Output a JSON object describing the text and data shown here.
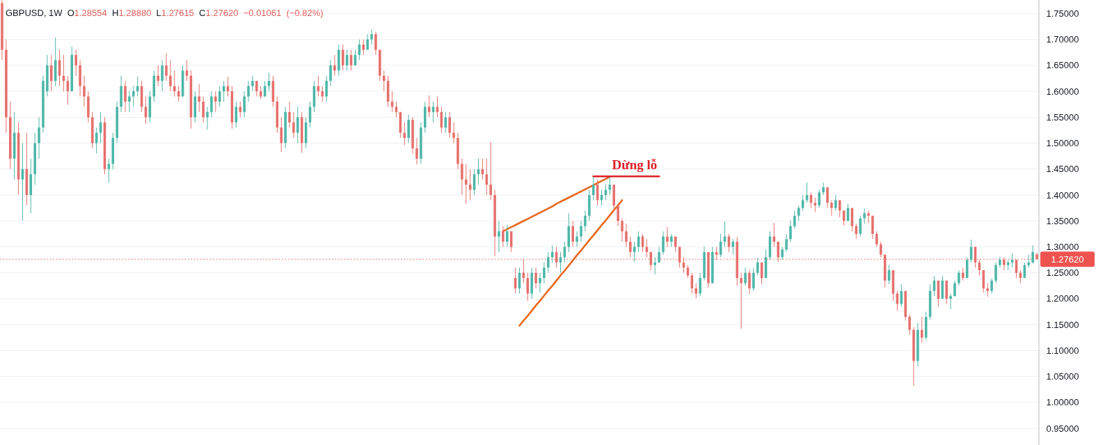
{
  "chart_data": {
    "type": "candlestick",
    "title": "GBPUSD, 1W",
    "subtitle": "O1.28554 H1.28880 L1.27615 C1.27620 −0.01061 (−0.82%)",
    "categories": [
      null,
      null,
      null,
      null,
      null,
      null,
      null,
      null,
      null,
      null,
      null,
      null,
      null,
      null,
      null,
      null,
      null,
      null,
      null,
      null,
      null,
      null,
      null,
      null,
      null,
      null,
      null,
      null,
      null,
      null,
      null,
      null,
      null,
      null,
      null,
      null,
      null,
      null,
      null,
      null,
      null,
      null,
      null,
      null,
      null,
      null,
      null,
      null,
      null,
      null,
      null,
      null,
      null,
      null,
      null,
      null,
      null,
      null,
      null,
      null,
      null,
      null,
      null,
      null,
      null,
      null,
      null,
      null,
      null,
      null,
      null,
      null,
      null,
      null,
      null,
      null,
      null,
      null,
      null,
      null,
      null,
      null,
      null,
      null,
      null,
      null,
      null,
      null,
      null,
      null,
      null,
      null,
      null,
      null,
      null,
      null,
      null,
      null,
      null,
      null,
      null,
      null,
      null,
      null,
      null,
      null,
      null,
      null,
      null,
      null,
      null,
      null,
      null,
      null,
      null,
      null,
      null,
      null,
      null,
      null,
      null,
      null,
      null,
      null,
      null,
      null,
      null,
      null,
      null,
      null,
      null,
      null,
      null,
      null,
      null,
      null,
      null,
      null,
      null,
      null,
      null,
      null,
      null,
      null,
      null,
      null,
      null,
      null,
      null,
      null,
      null,
      null,
      null,
      null,
      null,
      null,
      null,
      null,
      null,
      null,
      null,
      null,
      null,
      null,
      null,
      null,
      null,
      null,
      null,
      null,
      null,
      null,
      null,
      null,
      null,
      null,
      null,
      null,
      null,
      null,
      null,
      null,
      null,
      null,
      null,
      null,
      null,
      null,
      null,
      null,
      null,
      null,
      null,
      null,
      null,
      null,
      null,
      null,
      null,
      null,
      null,
      null,
      null,
      null,
      null,
      null,
      null,
      null,
      null,
      null,
      null,
      null,
      null,
      null,
      null,
      null,
      null,
      null,
      null,
      null,
      null,
      null,
      null,
      null,
      null,
      null,
      null,
      null,
      null,
      null,
      null,
      null,
      null,
      null,
      null,
      null,
      null,
      null,
      null,
      null,
      null,
      null,
      null,
      null,
      null,
      null,
      null,
      null,
      null,
      null,
      null,
      null,
      null
    ],
    "ohlc": [
      [
        1.77,
        1.775,
        1.66,
        1.68
      ],
      [
        1.68,
        1.7,
        1.52,
        1.55
      ],
      [
        1.55,
        1.58,
        1.45,
        1.47
      ],
      [
        1.47,
        1.56,
        1.43,
        1.52
      ],
      [
        1.52,
        1.54,
        1.4,
        1.43
      ],
      [
        1.43,
        1.5,
        1.351,
        1.45
      ],
      [
        1.45,
        1.52,
        1.38,
        1.4
      ],
      [
        1.4,
        1.47,
        1.365,
        1.44
      ],
      [
        1.44,
        1.52,
        1.42,
        1.5
      ],
      [
        1.5,
        1.55,
        1.47,
        1.53
      ],
      [
        1.53,
        1.63,
        1.52,
        1.62
      ],
      [
        1.6,
        1.67,
        1.59,
        1.65
      ],
      [
        1.65,
        1.67,
        1.6,
        1.62
      ],
      [
        1.62,
        1.704,
        1.61,
        1.66
      ],
      [
        1.66,
        1.68,
        1.61,
        1.63
      ],
      [
        1.63,
        1.67,
        1.6,
        1.62
      ],
      [
        1.62,
        1.63,
        1.574,
        1.6
      ],
      [
        1.6,
        1.686,
        1.6,
        1.67
      ],
      [
        1.67,
        1.68,
        1.63,
        1.65
      ],
      [
        1.65,
        1.66,
        1.59,
        1.61
      ],
      [
        1.61,
        1.63,
        1.57,
        1.59
      ],
      [
        1.59,
        1.6,
        1.54,
        1.55
      ],
      [
        1.55,
        1.56,
        1.49,
        1.5
      ],
      [
        1.5,
        1.53,
        1.48,
        1.52
      ],
      [
        1.52,
        1.56,
        1.5,
        1.54
      ],
      [
        1.54,
        1.55,
        1.44,
        1.45
      ],
      [
        1.45,
        1.47,
        1.424,
        1.46
      ],
      [
        1.46,
        1.52,
        1.45,
        1.51
      ],
      [
        1.51,
        1.58,
        1.5,
        1.57
      ],
      [
        1.57,
        1.63,
        1.56,
        1.61
      ],
      [
        1.61,
        1.62,
        1.56,
        1.58
      ],
      [
        1.58,
        1.6,
        1.56,
        1.59
      ],
      [
        1.59,
        1.61,
        1.57,
        1.6
      ],
      [
        1.6,
        1.628,
        1.59,
        1.61
      ],
      [
        1.61,
        1.62,
        1.56,
        1.57
      ],
      [
        1.57,
        1.59,
        1.537,
        1.55
      ],
      [
        1.55,
        1.6,
        1.54,
        1.59
      ],
      [
        1.59,
        1.64,
        1.58,
        1.63
      ],
      [
        1.63,
        1.65,
        1.61,
        1.62
      ],
      [
        1.62,
        1.66,
        1.6,
        1.65
      ],
      [
        1.65,
        1.673,
        1.62,
        1.63
      ],
      [
        1.63,
        1.66,
        1.6,
        1.61
      ],
      [
        1.61,
        1.64,
        1.59,
        1.6
      ],
      [
        1.6,
        1.61,
        1.58,
        1.59
      ],
      [
        1.59,
        1.65,
        1.59,
        1.64
      ],
      [
        1.64,
        1.66,
        1.62,
        1.63
      ],
      [
        1.63,
        1.64,
        1.528,
        1.55
      ],
      [
        1.55,
        1.6,
        1.54,
        1.59
      ],
      [
        1.59,
        1.614,
        1.56,
        1.58
      ],
      [
        1.58,
        1.59,
        1.54,
        1.55
      ],
      [
        1.55,
        1.57,
        1.526,
        1.56
      ],
      [
        1.56,
        1.6,
        1.55,
        1.59
      ],
      [
        1.59,
        1.6,
        1.56,
        1.58
      ],
      [
        1.58,
        1.61,
        1.57,
        1.6
      ],
      [
        1.6,
        1.62,
        1.58,
        1.61
      ],
      [
        1.61,
        1.628,
        1.59,
        1.6
      ],
      [
        1.6,
        1.61,
        1.528,
        1.54
      ],
      [
        1.54,
        1.58,
        1.53,
        1.57
      ],
      [
        1.57,
        1.58,
        1.55,
        1.56
      ],
      [
        1.56,
        1.6,
        1.55,
        1.59
      ],
      [
        1.59,
        1.62,
        1.58,
        1.61
      ],
      [
        1.61,
        1.63,
        1.6,
        1.62
      ],
      [
        1.62,
        1.62,
        1.59,
        1.6
      ],
      [
        1.6,
        1.61,
        1.585,
        1.59
      ],
      [
        1.59,
        1.62,
        1.59,
        1.61
      ],
      [
        1.61,
        1.636,
        1.6,
        1.62
      ],
      [
        1.62,
        1.63,
        1.57,
        1.58
      ],
      [
        1.58,
        1.59,
        1.52,
        1.53
      ],
      [
        1.53,
        1.55,
        1.483,
        1.5
      ],
      [
        1.5,
        1.57,
        1.49,
        1.56
      ],
      [
        1.56,
        1.58,
        1.53,
        1.54
      ],
      [
        1.54,
        1.56,
        1.51,
        1.52
      ],
      [
        1.52,
        1.57,
        1.5,
        1.55
      ],
      [
        1.55,
        1.56,
        1.481,
        1.5
      ],
      [
        1.5,
        1.55,
        1.49,
        1.54
      ],
      [
        1.54,
        1.58,
        1.53,
        1.57
      ],
      [
        1.57,
        1.62,
        1.56,
        1.61
      ],
      [
        1.61,
        1.63,
        1.59,
        1.6
      ],
      [
        1.6,
        1.61,
        1.58,
        1.59
      ],
      [
        1.59,
        1.63,
        1.58,
        1.62
      ],
      [
        1.62,
        1.66,
        1.61,
        1.65
      ],
      [
        1.65,
        1.67,
        1.63,
        1.64
      ],
      [
        1.64,
        1.69,
        1.63,
        1.68
      ],
      [
        1.68,
        1.69,
        1.64,
        1.65
      ],
      [
        1.65,
        1.68,
        1.64,
        1.67
      ],
      [
        1.67,
        1.68,
        1.64,
        1.65
      ],
      [
        1.65,
        1.68,
        1.65,
        1.67
      ],
      [
        1.67,
        1.7,
        1.66,
        1.69
      ],
      [
        1.69,
        1.7,
        1.67,
        1.68
      ],
      [
        1.68,
        1.71,
        1.68,
        1.7
      ],
      [
        1.7,
        1.719,
        1.69,
        1.71
      ],
      [
        1.71,
        1.715,
        1.67,
        1.68
      ],
      [
        1.68,
        1.68,
        1.62,
        1.63
      ],
      [
        1.63,
        1.64,
        1.6,
        1.62
      ],
      [
        1.62,
        1.63,
        1.57,
        1.58
      ],
      [
        1.58,
        1.6,
        1.56,
        1.57
      ],
      [
        1.57,
        1.58,
        1.55,
        1.56
      ],
      [
        1.56,
        1.56,
        1.51,
        1.52
      ],
      [
        1.52,
        1.54,
        1.496,
        1.51
      ],
      [
        1.51,
        1.555,
        1.5,
        1.545
      ],
      [
        1.545,
        1.55,
        1.48,
        1.49
      ],
      [
        1.49,
        1.51,
        1.459,
        1.47
      ],
      [
        1.47,
        1.54,
        1.46,
        1.53
      ],
      [
        1.53,
        1.58,
        1.52,
        1.57
      ],
      [
        1.57,
        1.592,
        1.55,
        1.56
      ],
      [
        1.56,
        1.58,
        1.54,
        1.57
      ],
      [
        1.57,
        1.59,
        1.55,
        1.56
      ],
      [
        1.56,
        1.57,
        1.52,
        1.53
      ],
      [
        1.53,
        1.56,
        1.52,
        1.55
      ],
      [
        1.55,
        1.56,
        1.51,
        1.52
      ],
      [
        1.52,
        1.54,
        1.5,
        1.51
      ],
      [
        1.51,
        1.52,
        1.45,
        1.46
      ],
      [
        1.46,
        1.47,
        1.4,
        1.43
      ],
      [
        1.43,
        1.46,
        1.383,
        1.42
      ],
      [
        1.42,
        1.45,
        1.39,
        1.41
      ],
      [
        1.41,
        1.45,
        1.4,
        1.44
      ],
      [
        1.44,
        1.47,
        1.42,
        1.45
      ],
      [
        1.45,
        1.47,
        1.43,
        1.44
      ],
      [
        1.44,
        1.47,
        1.4,
        1.42
      ],
      [
        1.42,
        1.502,
        1.39,
        1.4
      ],
      [
        1.4,
        1.41,
        1.282,
        1.32
      ],
      [
        1.32,
        1.35,
        1.29,
        1.33
      ],
      [
        1.33,
        1.34,
        1.3,
        1.31
      ],
      [
        1.31,
        1.343,
        1.3,
        1.33
      ],
      [
        1.33,
        1.33,
        1.29,
        1.3
      ],
      [
        1.24,
        1.26,
        1.21,
        1.22
      ],
      [
        1.22,
        1.26,
        1.21,
        1.25
      ],
      [
        1.25,
        1.276,
        1.23,
        1.24
      ],
      [
        1.24,
        1.25,
        1.196,
        1.21
      ],
      [
        1.21,
        1.26,
        1.2,
        1.25
      ],
      [
        1.25,
        1.26,
        1.22,
        1.23
      ],
      [
        1.23,
        1.25,
        1.212,
        1.24
      ],
      [
        1.24,
        1.27,
        1.23,
        1.26
      ],
      [
        1.26,
        1.29,
        1.25,
        1.28
      ],
      [
        1.28,
        1.303,
        1.27,
        1.29
      ],
      [
        1.29,
        1.3,
        1.26,
        1.27
      ],
      [
        1.27,
        1.29,
        1.25,
        1.28
      ],
      [
        1.28,
        1.31,
        1.27,
        1.3
      ],
      [
        1.3,
        1.365,
        1.29,
        1.34
      ],
      [
        1.34,
        1.35,
        1.3,
        1.31
      ],
      [
        1.31,
        1.33,
        1.3,
        1.32
      ],
      [
        1.32,
        1.35,
        1.31,
        1.34
      ],
      [
        1.34,
        1.37,
        1.33,
        1.36
      ],
      [
        1.36,
        1.41,
        1.35,
        1.4
      ],
      [
        1.4,
        1.435,
        1.39,
        1.42
      ],
      [
        1.42,
        1.43,
        1.38,
        1.39
      ],
      [
        1.39,
        1.41,
        1.38,
        1.4
      ],
      [
        1.4,
        1.42,
        1.39,
        1.41
      ],
      [
        1.41,
        1.435,
        1.4,
        1.42
      ],
      [
        1.42,
        1.42,
        1.37,
        1.38
      ],
      [
        1.38,
        1.38,
        1.34,
        1.35
      ],
      [
        1.35,
        1.355,
        1.31,
        1.33
      ],
      [
        1.33,
        1.345,
        1.3,
        1.31
      ],
      [
        1.31,
        1.32,
        1.28,
        1.29
      ],
      [
        1.29,
        1.31,
        1.271,
        1.3
      ],
      [
        1.3,
        1.33,
        1.29,
        1.32
      ],
      [
        1.32,
        1.325,
        1.29,
        1.3
      ],
      [
        1.3,
        1.315,
        1.28,
        1.29
      ],
      [
        1.29,
        1.29,
        1.255,
        1.265
      ],
      [
        1.265,
        1.28,
        1.247,
        1.27
      ],
      [
        1.27,
        1.3,
        1.27,
        1.29
      ],
      [
        1.29,
        1.33,
        1.285,
        1.32
      ],
      [
        1.32,
        1.338,
        1.3,
        1.31
      ],
      [
        1.31,
        1.325,
        1.3,
        1.32
      ],
      [
        1.32,
        1.32,
        1.29,
        1.3
      ],
      [
        1.3,
        1.3,
        1.26,
        1.27
      ],
      [
        1.27,
        1.28,
        1.25,
        1.26
      ],
      [
        1.26,
        1.265,
        1.24,
        1.245
      ],
      [
        1.245,
        1.25,
        1.21,
        1.22
      ],
      [
        1.22,
        1.23,
        1.201,
        1.21
      ],
      [
        1.21,
        1.25,
        1.205,
        1.24
      ],
      [
        1.24,
        1.3,
        1.235,
        1.29
      ],
      [
        1.29,
        1.29,
        1.222,
        1.23
      ],
      [
        1.23,
        1.3,
        1.23,
        1.29
      ],
      [
        1.29,
        1.3,
        1.275,
        1.285
      ],
      [
        1.285,
        1.325,
        1.28,
        1.31
      ],
      [
        1.31,
        1.349,
        1.3,
        1.32
      ],
      [
        1.32,
        1.325,
        1.29,
        1.3
      ],
      [
        1.3,
        1.315,
        1.285,
        1.31
      ],
      [
        1.31,
        1.319,
        1.225,
        1.24
      ],
      [
        1.24,
        1.25,
        1.142,
        1.23
      ],
      [
        1.23,
        1.26,
        1.225,
        1.25
      ],
      [
        1.25,
        1.255,
        1.209,
        1.22
      ],
      [
        1.22,
        1.26,
        1.215,
        1.25
      ],
      [
        1.25,
        1.279,
        1.245,
        1.27
      ],
      [
        1.27,
        1.27,
        1.228,
        1.24
      ],
      [
        1.24,
        1.295,
        1.24,
        1.28
      ],
      [
        1.28,
        1.33,
        1.275,
        1.32
      ],
      [
        1.32,
        1.346,
        1.3,
        1.31
      ],
      [
        1.31,
        1.31,
        1.271,
        1.28
      ],
      [
        1.28,
        1.3,
        1.275,
        1.295
      ],
      [
        1.295,
        1.325,
        1.29,
        1.315
      ],
      [
        1.315,
        1.351,
        1.31,
        1.34
      ],
      [
        1.34,
        1.37,
        1.335,
        1.36
      ],
      [
        1.36,
        1.38,
        1.35,
        1.375
      ],
      [
        1.375,
        1.4,
        1.37,
        1.39
      ],
      [
        1.39,
        1.424,
        1.385,
        1.4
      ],
      [
        1.4,
        1.405,
        1.375,
        1.385
      ],
      [
        1.385,
        1.395,
        1.367,
        1.38
      ],
      [
        1.38,
        1.41,
        1.375,
        1.405
      ],
      [
        1.405,
        1.424,
        1.4,
        1.415
      ],
      [
        1.415,
        1.415,
        1.375,
        1.385
      ],
      [
        1.385,
        1.39,
        1.36,
        1.375
      ],
      [
        1.375,
        1.4,
        1.37,
        1.39
      ],
      [
        1.39,
        1.39,
        1.357,
        1.37
      ],
      [
        1.37,
        1.37,
        1.341,
        1.35
      ],
      [
        1.35,
        1.383,
        1.35,
        1.375
      ],
      [
        1.375,
        1.375,
        1.33,
        1.34
      ],
      [
        1.34,
        1.345,
        1.316,
        1.325
      ],
      [
        1.325,
        1.36,
        1.32,
        1.355
      ],
      [
        1.355,
        1.374,
        1.345,
        1.365
      ],
      [
        1.365,
        1.37,
        1.345,
        1.36
      ],
      [
        1.36,
        1.36,
        1.315,
        1.325
      ],
      [
        1.325,
        1.33,
        1.3,
        1.305
      ],
      [
        1.305,
        1.31,
        1.28,
        1.285
      ],
      [
        1.285,
        1.285,
        1.222,
        1.235
      ],
      [
        1.235,
        1.265,
        1.228,
        1.255
      ],
      [
        1.255,
        1.255,
        1.196,
        1.21
      ],
      [
        1.21,
        1.215,
        1.177,
        1.19
      ],
      [
        1.19,
        1.228,
        1.185,
        1.215
      ],
      [
        1.215,
        1.215,
        1.158,
        1.165
      ],
      [
        1.165,
        1.17,
        1.13,
        1.14
      ],
      [
        1.14,
        1.145,
        1.032,
        1.08
      ],
      [
        1.08,
        1.153,
        1.07,
        1.14
      ],
      [
        1.14,
        1.165,
        1.115,
        1.125
      ],
      [
        1.125,
        1.175,
        1.12,
        1.165
      ],
      [
        1.165,
        1.228,
        1.16,
        1.215
      ],
      [
        1.215,
        1.244,
        1.205,
        1.235
      ],
      [
        1.235,
        1.235,
        1.185,
        1.2
      ],
      [
        1.2,
        1.244,
        1.2,
        1.235
      ],
      [
        1.235,
        1.235,
        1.19,
        1.2
      ],
      [
        1.2,
        1.21,
        1.18,
        1.205
      ],
      [
        1.205,
        1.235,
        1.205,
        1.23
      ],
      [
        1.23,
        1.255,
        1.225,
        1.25
      ],
      [
        1.25,
        1.26,
        1.235,
        1.24
      ],
      [
        1.24,
        1.28,
        1.24,
        1.275
      ],
      [
        1.275,
        1.314,
        1.27,
        1.3
      ],
      [
        1.3,
        1.3,
        1.26,
        1.27
      ],
      [
        1.27,
        1.275,
        1.245,
        1.255
      ],
      [
        1.255,
        1.255,
        1.212,
        1.22
      ],
      [
        1.22,
        1.23,
        1.204,
        1.215
      ],
      [
        1.215,
        1.24,
        1.21,
        1.235
      ],
      [
        1.235,
        1.27,
        1.23,
        1.265
      ],
      [
        1.265,
        1.281,
        1.26,
        1.275
      ],
      [
        1.275,
        1.28,
        1.255,
        1.265
      ],
      [
        1.265,
        1.275,
        1.255,
        1.27
      ],
      [
        1.27,
        1.287,
        1.26,
        1.275
      ],
      [
        1.275,
        1.275,
        1.24,
        1.25
      ],
      [
        1.25,
        1.255,
        1.23,
        1.24
      ],
      [
        1.24,
        1.27,
        1.24,
        1.265
      ],
      [
        1.265,
        1.285,
        1.26,
        1.27
      ],
      [
        1.27,
        1.303,
        1.268,
        1.29
      ],
      [
        1.28554,
        1.2888,
        1.27615,
        1.2762
      ]
    ],
    "colors": [
      "#e5706c",
      "#e5706c",
      "#e5706c",
      "#4db6a8",
      "#e5706c",
      "#4db6a8",
      "#e5706c",
      "#4db6a8",
      "#4db6a8",
      "#4db6a8",
      "#4db6a8",
      "#4db6a8",
      "#e5706c",
      "#4db6a8",
      "#e5706c",
      "#e5706c",
      "#e5706c",
      "#4db6a8",
      "#e5706c",
      "#e5706c",
      "#e5706c",
      "#e5706c",
      "#e5706c",
      "#4db6a8",
      "#4db6a8",
      "#e5706c",
      "#4db6a8",
      "#4db6a8",
      "#4db6a8",
      "#4db6a8",
      "#e5706c",
      "#4db6a8",
      "#4db6a8",
      "#4db6a8",
      "#e5706c",
      "#e5706c",
      "#4db6a8",
      "#4db6a8",
      "#e5706c",
      "#4db6a8",
      "#e5706c",
      "#e5706c",
      "#e5706c",
      "#e5706c",
      "#4db6a8",
      "#e5706c",
      "#e5706c",
      "#4db6a8",
      "#e5706c",
      "#e5706c",
      "#4db6a8",
      "#4db6a8",
      "#e5706c",
      "#4db6a8",
      "#4db6a8",
      "#e5706c",
      "#e5706c",
      "#4db6a8",
      "#e5706c",
      "#4db6a8",
      "#4db6a8",
      "#4db6a8",
      "#e5706c",
      "#e5706c",
      "#4db6a8",
      "#4db6a8",
      "#e5706c",
      "#e5706c",
      "#e5706c",
      "#4db6a8",
      "#e5706c",
      "#e5706c",
      "#4db6a8",
      "#e5706c",
      "#4db6a8",
      "#4db6a8",
      "#4db6a8",
      "#e5706c",
      "#e5706c",
      "#4db6a8",
      "#4db6a8",
      "#e5706c",
      "#4db6a8",
      "#e5706c",
      "#4db6a8",
      "#e5706c",
      "#4db6a8",
      "#4db6a8",
      "#e5706c",
      "#4db6a8",
      "#4db6a8",
      "#e5706c",
      "#e5706c",
      "#e5706c",
      "#e5706c",
      "#e5706c",
      "#e5706c",
      "#e5706c",
      "#e5706c",
      "#4db6a8",
      "#e5706c",
      "#e5706c",
      "#4db6a8",
      "#4db6a8",
      "#e5706c",
      "#4db6a8",
      "#e5706c",
      "#e5706c",
      "#4db6a8",
      "#e5706c",
      "#e5706c",
      "#e5706c",
      "#e5706c",
      "#e5706c",
      "#e5706c",
      "#4db6a8",
      "#4db6a8",
      "#e5706c",
      "#e5706c",
      "#e5706c",
      "#e5706c",
      "#4db6a8",
      "#e5706c",
      "#4db6a8",
      "#e5706c",
      "#e5706c",
      "#4db6a8",
      "#e5706c",
      "#e5706c",
      "#4db6a8",
      "#e5706c",
      "#4db6a8",
      "#4db6a8",
      "#4db6a8",
      "#4db6a8",
      "#e5706c",
      "#4db6a8",
      "#4db6a8",
      "#4db6a8",
      "#e5706c",
      "#4db6a8",
      "#4db6a8",
      "#4db6a8",
      "#4db6a8",
      "#4db6a8",
      "#e5706c",
      "#4db6a8",
      "#4db6a8",
      "#4db6a8",
      "#e5706c",
      "#e5706c",
      "#e5706c",
      "#e5706c",
      "#e5706c",
      "#4db6a8",
      "#4db6a8",
      "#e5706c",
      "#e5706c",
      "#e5706c",
      "#4db6a8",
      "#4db6a8",
      "#4db6a8",
      "#e5706c",
      "#4db6a8",
      "#e5706c",
      "#e5706c",
      "#e5706c",
      "#e5706c",
      "#e5706c",
      "#e5706c",
      "#4db6a8",
      "#4db6a8",
      "#e5706c",
      "#4db6a8",
      "#e5706c",
      "#4db6a8",
      "#4db6a8",
      "#e5706c",
      "#4db6a8",
      "#e5706c",
      "#e5706c",
      "#4db6a8",
      "#e5706c",
      "#4db6a8",
      "#4db6a8",
      "#e5706c",
      "#4db6a8",
      "#4db6a8",
      "#e5706c",
      "#e5706c",
      "#4db6a8",
      "#4db6a8",
      "#4db6a8",
      "#4db6a8",
      "#4db6a8",
      "#4db6a8",
      "#4db6a8",
      "#e5706c",
      "#e5706c",
      "#4db6a8",
      "#4db6a8",
      "#e5706c",
      "#e5706c",
      "#4db6a8",
      "#e5706c",
      "#e5706c",
      "#4db6a8",
      "#e5706c",
      "#e5706c",
      "#4db6a8",
      "#4db6a8",
      "#e5706c",
      "#e5706c",
      "#e5706c",
      "#e5706c",
      "#e5706c",
      "#4db6a8",
      "#e5706c",
      "#e5706c",
      "#4db6a8",
      "#e5706c",
      "#e5706c",
      "#e5706c",
      "#4db6a8",
      "#e5706c",
      "#4db6a8",
      "#4db6a8",
      "#4db6a8",
      "#e5706c",
      "#4db6a8",
      "#e5706c",
      "#4db6a8",
      "#4db6a8",
      "#4db6a8",
      "#e5706c",
      "#4db6a8",
      "#4db6a8",
      "#e5706c",
      "#e5706c",
      "#e5706c",
      "#e5706c",
      "#4db6a8",
      "#4db6a8",
      "#4db6a8",
      "#e5706c",
      "#4db6a8",
      "#4db6a8",
      "#e5706c",
      "#e5706c",
      "#4db6a8",
      "#4db6a8",
      "#4db6a8",
      "#e5706c"
    ],
    "series": [
      {
        "type": "line",
        "color": "#e8671c",
        "values": [
          null,
          null,
          null,
          null,
          null,
          null,
          null,
          null,
          null,
          null,
          null,
          null,
          null,
          null,
          null,
          null,
          null,
          null,
          null,
          null,
          null,
          null,
          null,
          null,
          null,
          null,
          null,
          null,
          null,
          null,
          null,
          null,
          null,
          null,
          null,
          null,
          null,
          null,
          null,
          null,
          null,
          null,
          null,
          null,
          null,
          null,
          null,
          null,
          null,
          null,
          null,
          null,
          null,
          null,
          null,
          null,
          null,
          null,
          null,
          null,
          null,
          null,
          null,
          null,
          null,
          null,
          null,
          null,
          null,
          null,
          null,
          null,
          null,
          null,
          null,
          null,
          null,
          null,
          null,
          null,
          null,
          null,
          null,
          null,
          null,
          null,
          null,
          null,
          null,
          null,
          null,
          null,
          null,
          null,
          null,
          null,
          null,
          null,
          null,
          null,
          null,
          null,
          null,
          null,
          null,
          null,
          null,
          null,
          null,
          null,
          null,
          null,
          null,
          null,
          null,
          null,
          null,
          null,
          null,
          null,
          null,
          null,
          1.33,
          1.334,
          1.338,
          1.342,
          1.346,
          1.35,
          1.354,
          1.358,
          1.362,
          1.366,
          1.37,
          1.374,
          1.378,
          1.383,
          1.387,
          1.391,
          1.395,
          1.399,
          1.403,
          1.407,
          1.411,
          1.415,
          1.419,
          1.423,
          1.427,
          1.431,
          1.435,
          null,
          null,
          null,
          null,
          null,
          null,
          null,
          null,
          null,
          null,
          null,
          null,
          null,
          null,
          null,
          null,
          null,
          null,
          null,
          null,
          null,
          null,
          null,
          null,
          null,
          null,
          null,
          null,
          null,
          null,
          null,
          null,
          null,
          null,
          null,
          null,
          null,
          null,
          null,
          null,
          null,
          null,
          null,
          null,
          null,
          null,
          null,
          null,
          null,
          null,
          null,
          null,
          null,
          null,
          null,
          null,
          null,
          null,
          null,
          null,
          null,
          null,
          null,
          null,
          null,
          null,
          null,
          null,
          null,
          null,
          null,
          null,
          null,
          null,
          null,
          null,
          null,
          null,
          null,
          null,
          null,
          null,
          null,
          null,
          null,
          null,
          null,
          null,
          null,
          null,
          null,
          null,
          null,
          null,
          null,
          null,
          null,
          null,
          null,
          null,
          null,
          null,
          null,
          null
        ]
      },
      {
        "type": "line",
        "color": "#e8671c",
        "values": [
          null,
          null,
          null,
          null,
          null,
          null,
          null,
          null,
          null,
          null,
          null,
          null,
          null,
          null,
          null,
          null,
          null,
          null,
          null,
          null,
          null,
          null,
          null,
          null,
          null,
          null,
          null,
          null,
          null,
          null,
          null,
          null,
          null,
          null,
          null,
          null,
          null,
          null,
          null,
          null,
          null,
          null,
          null,
          null,
          null,
          null,
          null,
          null,
          null,
          null,
          null,
          null,
          null,
          null,
          null,
          null,
          null,
          null,
          null,
          null,
          null,
          null,
          null,
          null,
          null,
          null,
          null,
          null,
          null,
          null,
          null,
          null,
          null,
          null,
          null,
          null,
          null,
          null,
          null,
          null,
          null,
          null,
          null,
          null,
          null,
          null,
          null,
          null,
          null,
          null,
          null,
          null,
          null,
          null,
          null,
          null,
          null,
          null,
          null,
          null,
          null,
          null,
          null,
          null,
          null,
          null,
          null,
          null,
          null,
          null,
          null,
          null,
          null,
          null,
          null,
          null,
          null,
          null,
          null,
          null,
          null,
          null,
          null,
          null,
          null,
          null,
          1.148,
          1.158,
          1.167,
          1.177,
          1.187,
          1.196,
          1.206,
          1.216,
          1.225,
          1.235,
          1.245,
          1.254,
          1.264,
          1.274,
          1.284,
          1.293,
          1.303,
          1.313,
          1.322,
          1.332,
          1.342,
          1.351,
          1.361,
          1.371,
          1.38,
          1.39,
          null,
          null,
          null,
          null,
          null,
          null,
          null,
          null,
          null,
          null,
          null,
          null,
          null,
          null,
          null,
          null,
          null,
          null,
          null,
          null,
          null,
          null,
          null,
          null,
          null,
          null,
          null,
          null,
          null,
          null,
          null,
          null,
          null,
          null,
          null,
          null,
          null,
          null,
          null,
          null,
          null,
          null,
          null,
          null,
          null,
          null,
          null,
          null,
          null,
          null,
          null,
          null,
          null,
          null,
          null,
          null,
          null,
          null,
          null,
          null,
          null,
          null,
          null,
          null,
          null,
          null,
          null,
          null,
          null,
          null,
          null,
          null,
          null,
          null,
          null,
          null,
          null,
          null,
          null,
          null,
          null,
          null,
          null,
          null,
          null,
          null,
          null,
          null,
          null,
          null,
          null,
          null,
          null,
          null,
          null,
          null,
          null,
          null,
          null,
          null,
          null
        ]
      },
      {
        "type": "line",
        "name": "Dừng lỗ",
        "color": "#dd1f26",
        "values": [
          null,
          null,
          null,
          null,
          null,
          null,
          null,
          null,
          null,
          null,
          null,
          null,
          null,
          null,
          null,
          null,
          null,
          null,
          null,
          null,
          null,
          null,
          null,
          null,
          null,
          null,
          null,
          null,
          null,
          null,
          null,
          null,
          null,
          null,
          null,
          null,
          null,
          null,
          null,
          null,
          null,
          null,
          null,
          null,
          null,
          null,
          null,
          null,
          null,
          null,
          null,
          null,
          null,
          null,
          null,
          null,
          null,
          null,
          null,
          null,
          null,
          null,
          null,
          null,
          null,
          null,
          null,
          null,
          null,
          null,
          null,
          null,
          null,
          null,
          null,
          null,
          null,
          null,
          null,
          null,
          null,
          null,
          null,
          null,
          null,
          null,
          null,
          null,
          null,
          null,
          null,
          null,
          null,
          null,
          null,
          null,
          null,
          null,
          null,
          null,
          null,
          null,
          null,
          null,
          null,
          null,
          null,
          null,
          null,
          null,
          null,
          null,
          null,
          null,
          null,
          null,
          null,
          null,
          null,
          null,
          null,
          null,
          null,
          null,
          null,
          null,
          null,
          null,
          null,
          null,
          null,
          null,
          null,
          null,
          null,
          null,
          null,
          null,
          null,
          null,
          null,
          null,
          null,
          null,
          1.436,
          1.436,
          1.436,
          1.436,
          1.436,
          1.436,
          1.436,
          1.436,
          1.436,
          1.436,
          1.436,
          1.436,
          1.436,
          1.436,
          1.436,
          1.436,
          1.436,
          null,
          null,
          null,
          null,
          null,
          null,
          null,
          null,
          null,
          null,
          null,
          null,
          null,
          null,
          null,
          null,
          null,
          null,
          null,
          null,
          null,
          null,
          null,
          null,
          null,
          null,
          null,
          null,
          null,
          null,
          null,
          null,
          null,
          null,
          null,
          null,
          null,
          null,
          null,
          null,
          null,
          null,
          null,
          null,
          null,
          null,
          null,
          null,
          null,
          null,
          null,
          null,
          null,
          null,
          null,
          null,
          null,
          null,
          null,
          null,
          null,
          null,
          null,
          null,
          null,
          null,
          null,
          null,
          null,
          null,
          null,
          null,
          null,
          null,
          null,
          null,
          null,
          null,
          null,
          null,
          null,
          null,
          null,
          null,
          null,
          null,
          null,
          null,
          null,
          null,
          null,
          null
        ]
      }
    ],
    "ylim": [
      0.918,
      1.776
    ],
    "yticks": [
      {
        "value": 0.95,
        "label": "0.95000"
      },
      {
        "value": 1.0,
        "label": "1.00000"
      },
      {
        "value": 1.05,
        "label": "1.05000"
      },
      {
        "value": 1.1,
        "label": "1.10000"
      },
      {
        "value": 1.15,
        "label": "1.15000"
      },
      {
        "value": 1.2,
        "label": "1.20000"
      },
      {
        "value": 1.25,
        "label": "1.25000"
      },
      {
        "value": 1.3,
        "label": "1.30000"
      },
      {
        "value": 1.35,
        "label": "1.35000"
      },
      {
        "value": 1.4,
        "label": "1.40000"
      },
      {
        "value": 1.45,
        "label": "1.45000"
      },
      {
        "value": 1.5,
        "label": "1.50000"
      },
      {
        "value": 1.55,
        "label": "1.55000"
      },
      {
        "value": 1.6,
        "label": "1.60000"
      },
      {
        "value": 1.65,
        "label": "1.65000"
      },
      {
        "value": 1.7,
        "label": "1.70000"
      },
      {
        "value": 1.75,
        "label": "1.75000"
      }
    ],
    "grid": "y",
    "tick_labels": "y",
    "ref_lines": [
      {
        "axis": "y",
        "value": 1.2762,
        "label": "1.27620",
        "color": "#ef5350",
        "line_style": "dotted"
      }
    ]
  }
}
